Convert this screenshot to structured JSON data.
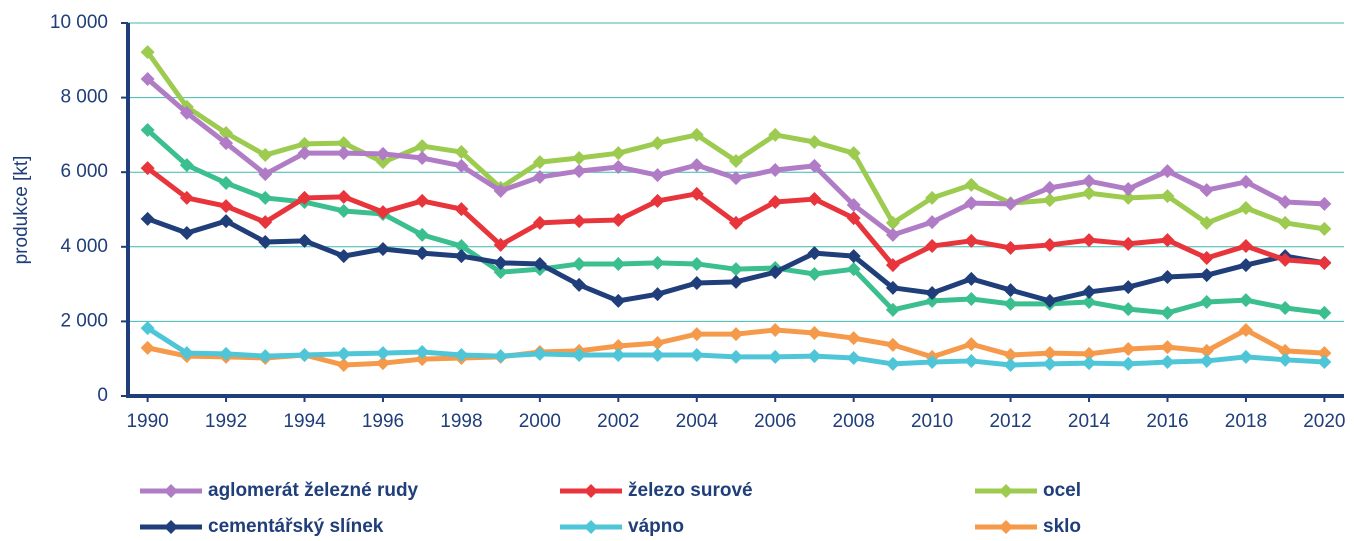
{
  "chart_data": {
    "type": "line",
    "y_label": "produkce [kt]",
    "x": [
      1990,
      1991,
      1992,
      1993,
      1994,
      1995,
      1996,
      1997,
      1998,
      1999,
      2000,
      2001,
      2002,
      2003,
      2004,
      2005,
      2006,
      2007,
      2008,
      2009,
      2010,
      2011,
      2012,
      2013,
      2014,
      2015,
      2016,
      2017,
      2018,
      2019,
      2020
    ],
    "xlim": [
      1989.5,
      2020.5
    ],
    "xticks": [
      1990,
      1992,
      1994,
      1996,
      1998,
      2000,
      2002,
      2004,
      2006,
      2008,
      2010,
      2012,
      2014,
      2016,
      2018,
      2020
    ],
    "ylim": [
      0,
      10000
    ],
    "yticks": [
      0,
      {
        "value": 2000,
        "label": "2 000"
      },
      {
        "value": 4000,
        "label": "4 000"
      },
      {
        "value": 6000,
        "label": "6 000"
      },
      {
        "value": 8000,
        "label": "8 000"
      },
      {
        "value": 10000,
        "label": "10 000"
      }
    ],
    "grid": true,
    "legend": "bottom",
    "series": [
      {
        "name": "aglomerát železné rudy",
        "color": "#b07cc6",
        "values": [
          8500,
          7590,
          6780,
          5950,
          6510,
          6510,
          6490,
          6380,
          6170,
          5500,
          5870,
          6030,
          6140,
          5920,
          6190,
          5840,
          6060,
          6170,
          5120,
          4320,
          4660,
          5170,
          5150,
          5580,
          5760,
          5550,
          6030,
          5520,
          5740,
          5200,
          5150
        ]
      },
      {
        "name": "železo surové",
        "color": "#e8343b",
        "values": [
          6110,
          5310,
          5090,
          4660,
          5310,
          5340,
          4930,
          5230,
          5010,
          4050,
          4640,
          4690,
          4720,
          5230,
          5420,
          4640,
          5200,
          5280,
          4770,
          3510,
          4020,
          4160,
          3970,
          4050,
          4180,
          4080,
          4180,
          3700,
          4020,
          3650,
          3570
        ]
      },
      {
        "name": "ocel",
        "color": "#9ccb4f",
        "values": [
          9220,
          7750,
          7050,
          6460,
          6760,
          6780,
          6270,
          6700,
          6540,
          5580,
          6270,
          6380,
          6510,
          6780,
          7000,
          6300,
          7000,
          6810,
          6510,
          4640,
          5310,
          5660,
          5170,
          5250,
          5440,
          5310,
          5360,
          4640,
          5040,
          4640,
          4480
        ]
      },
      {
        "name": "cementářský slínek",
        "color": "#1f3e7a",
        "values": [
          4750,
          4370,
          4690,
          4130,
          4160,
          3750,
          3940,
          3830,
          3750,
          3570,
          3540,
          2980,
          2550,
          2730,
          3030,
          3060,
          3320,
          3830,
          3750,
          2900,
          2760,
          3140,
          2840,
          2550,
          2790,
          2920,
          3190,
          3240,
          3510,
          3750,
          3570
        ]
      },
      {
        "name": "vápno",
        "color": "#4fc6d8",
        "values": [
          1820,
          1150,
          1130,
          1070,
          1100,
          1130,
          1150,
          1180,
          1100,
          1070,
          1130,
          1100,
          1100,
          1100,
          1100,
          1050,
          1050,
          1070,
          1020,
          860,
          910,
          940,
          830,
          860,
          880,
          860,
          910,
          940,
          1050,
          970,
          910
        ]
      },
      {
        "name": "sklo",
        "color": "#f59a4a",
        "values": [
          1290,
          1070,
          1050,
          1020,
          1100,
          830,
          880,
          990,
          1020,
          1050,
          1180,
          1210,
          1340,
          1420,
          1660,
          1660,
          1770,
          1690,
          1550,
          1370,
          1050,
          1390,
          1100,
          1150,
          1130,
          1260,
          1310,
          1210,
          1770,
          1210,
          1150
        ]
      },
      {
        "color": "#3bbf8f",
        "values": [
          7130,
          6190,
          5710,
          5310,
          5200,
          4960,
          4880,
          4320,
          4020,
          3320,
          3400,
          3540,
          3540,
          3570,
          3540,
          3400,
          3430,
          3270,
          3400,
          2310,
          2550,
          2600,
          2470,
          2470,
          2520,
          2330,
          2230,
          2520,
          2570,
          2360,
          2230
        ]
      }
    ]
  }
}
